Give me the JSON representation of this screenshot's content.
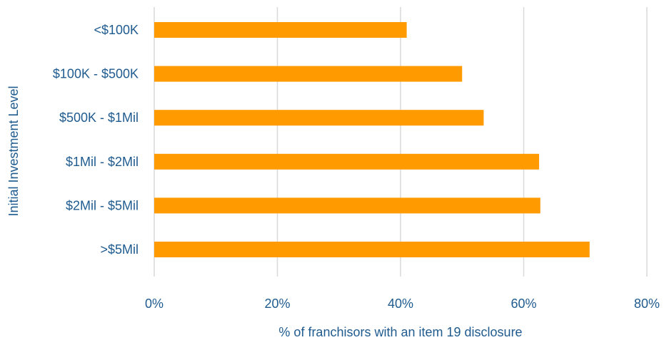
{
  "chart_data": {
    "type": "bar",
    "orientation": "horizontal",
    "categories": [
      "<$100K",
      "$100K - $500K",
      "$500K - $1Mil",
      "$1Mil - $2Mil",
      "$2Mil - $5Mil",
      ">$5Mil"
    ],
    "values": [
      41,
      50,
      53.5,
      62.5,
      62.7,
      70.7
    ],
    "xlabel": "% of franchisors with an item 19 disclosure",
    "ylabel": "Initial Investment Level",
    "xlim": [
      0,
      80
    ],
    "xticks": [
      "0%",
      "20%",
      "40%",
      "60%",
      "80%"
    ],
    "grid": true,
    "bar_color": "#ff9a00"
  }
}
